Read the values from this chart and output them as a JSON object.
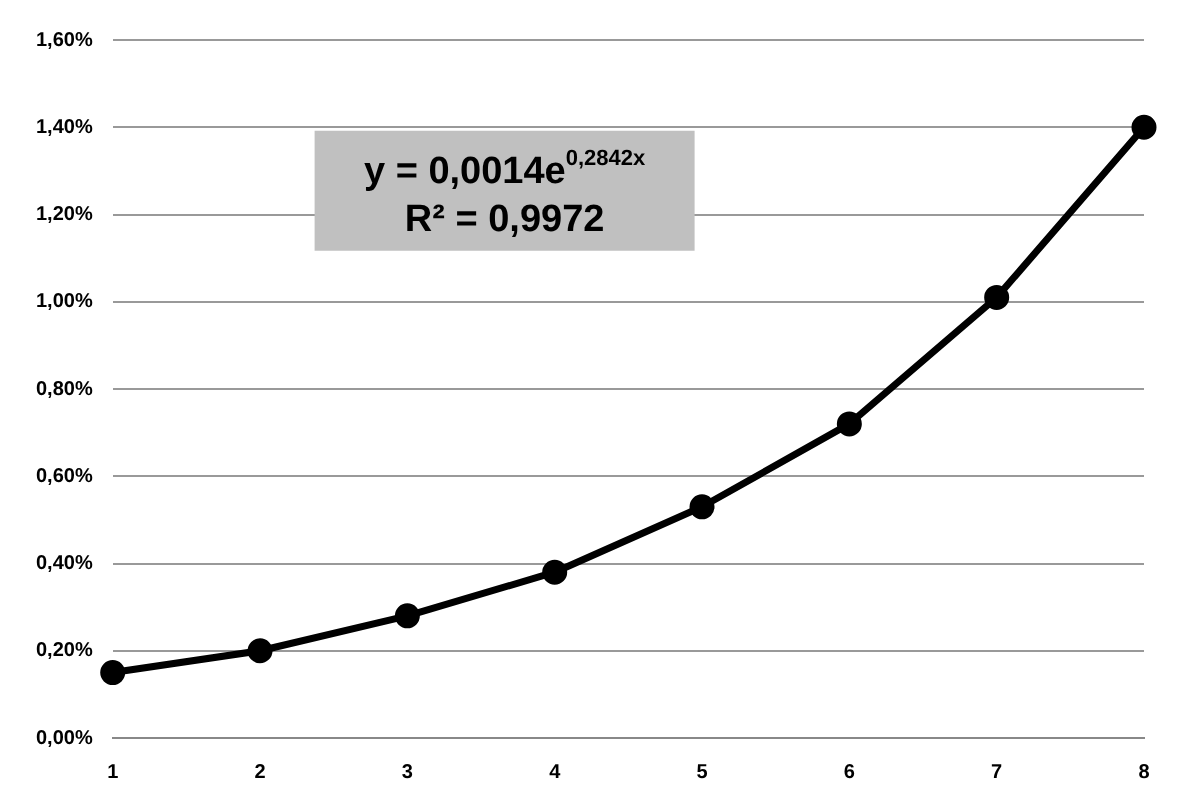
{
  "chart_data": {
    "type": "line",
    "categories": [
      "1",
      "2",
      "3",
      "4",
      "5",
      "6",
      "7",
      "8"
    ],
    "series": [
      {
        "color": "#000000",
        "values": [
          0.15,
          0.2,
          0.28,
          0.38,
          0.53,
          0.72,
          1.01,
          1.4
        ]
      }
    ],
    "ylim": [
      0,
      1.6
    ],
    "yticks": [
      {
        "value": 0,
        "label": "0,00%"
      },
      {
        "value": 0.2,
        "label": "0,20%"
      },
      {
        "value": 0.4,
        "label": "0,40%"
      },
      {
        "value": 0.6,
        "label": "0,60%"
      },
      {
        "value": 0.8,
        "label": "0,80%"
      },
      {
        "value": 1,
        "label": "1,00%"
      },
      {
        "value": 1.2,
        "label": "1,20%"
      },
      {
        "value": 1.4,
        "label": "1,40%"
      },
      {
        "value": 1.6,
        "label": "1,60%"
      }
    ],
    "grid": "y",
    "marker": "circle",
    "line_style": "solid",
    "annotations": [
      "y = 0,0014e$^{0,2842x}$",
      "R² = 0,9972"
    ]
  }
}
